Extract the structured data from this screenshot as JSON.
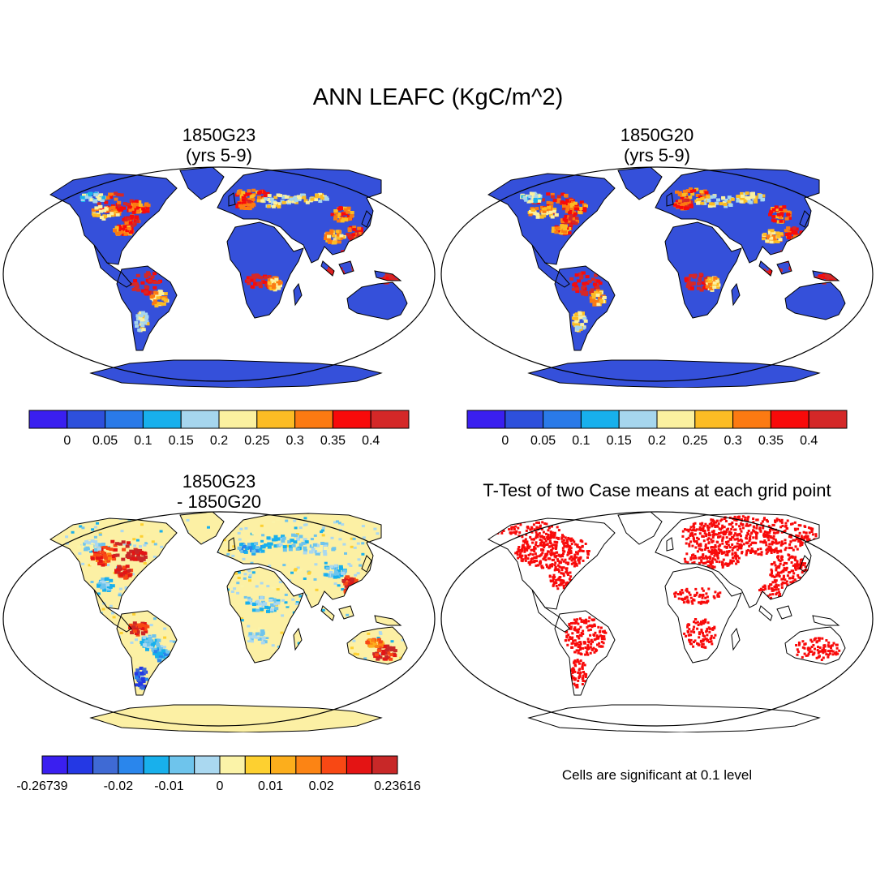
{
  "title": "ANN LEAFC (KgC/m^2)",
  "panels": [
    {
      "title_line1": "1850G23",
      "title_line2": "(yrs 5-9)",
      "kind": "field"
    },
    {
      "title_line1": "1850G20",
      "title_line2": "(yrs 5-9)",
      "kind": "field"
    },
    {
      "title_line1": "1850G23",
      "title_line2": "- 1850G20",
      "kind": "difference"
    },
    {
      "title_line1": "T-Test of two Case means at each grid point",
      "title_line2": "",
      "kind": "ttest"
    }
  ],
  "colorbar_main": {
    "colors": [
      "#3a1ff0",
      "#2e50dc",
      "#2a7ae8",
      "#18b0ec",
      "#a6d6ee",
      "#fbf1a0",
      "#fcbc24",
      "#fc7a12",
      "#f80a0a",
      "#d42828"
    ],
    "labels": [
      "0",
      "0.05",
      "0.1",
      "0.15",
      "0.2",
      "0.25",
      "0.3",
      "0.35",
      "0.4"
    ]
  },
  "colorbar_diff": {
    "colors": [
      "#3a1ff0",
      "#2438e4",
      "#3f6ad4",
      "#2a86ec",
      "#18b0ec",
      "#6ec4ec",
      "#aad8f0",
      "#fbf3a8",
      "#fdd030",
      "#fcae1c",
      "#fc8414",
      "#f84814",
      "#e41414",
      "#c82828"
    ],
    "labels": [
      "-0.26739",
      "-0.02",
      "-0.01",
      "0",
      "0.01",
      "0.02",
      "0.23616"
    ],
    "label_positions": [
      0,
      3,
      5,
      7,
      9,
      11,
      14
    ]
  },
  "significance_note": "Cells are significant at 0.1 level",
  "map_colors": {
    "land_base": "#3550da",
    "diff_base": "#fcf0a4",
    "significant": "#f80a0a",
    "outline": "#000000"
  }
}
